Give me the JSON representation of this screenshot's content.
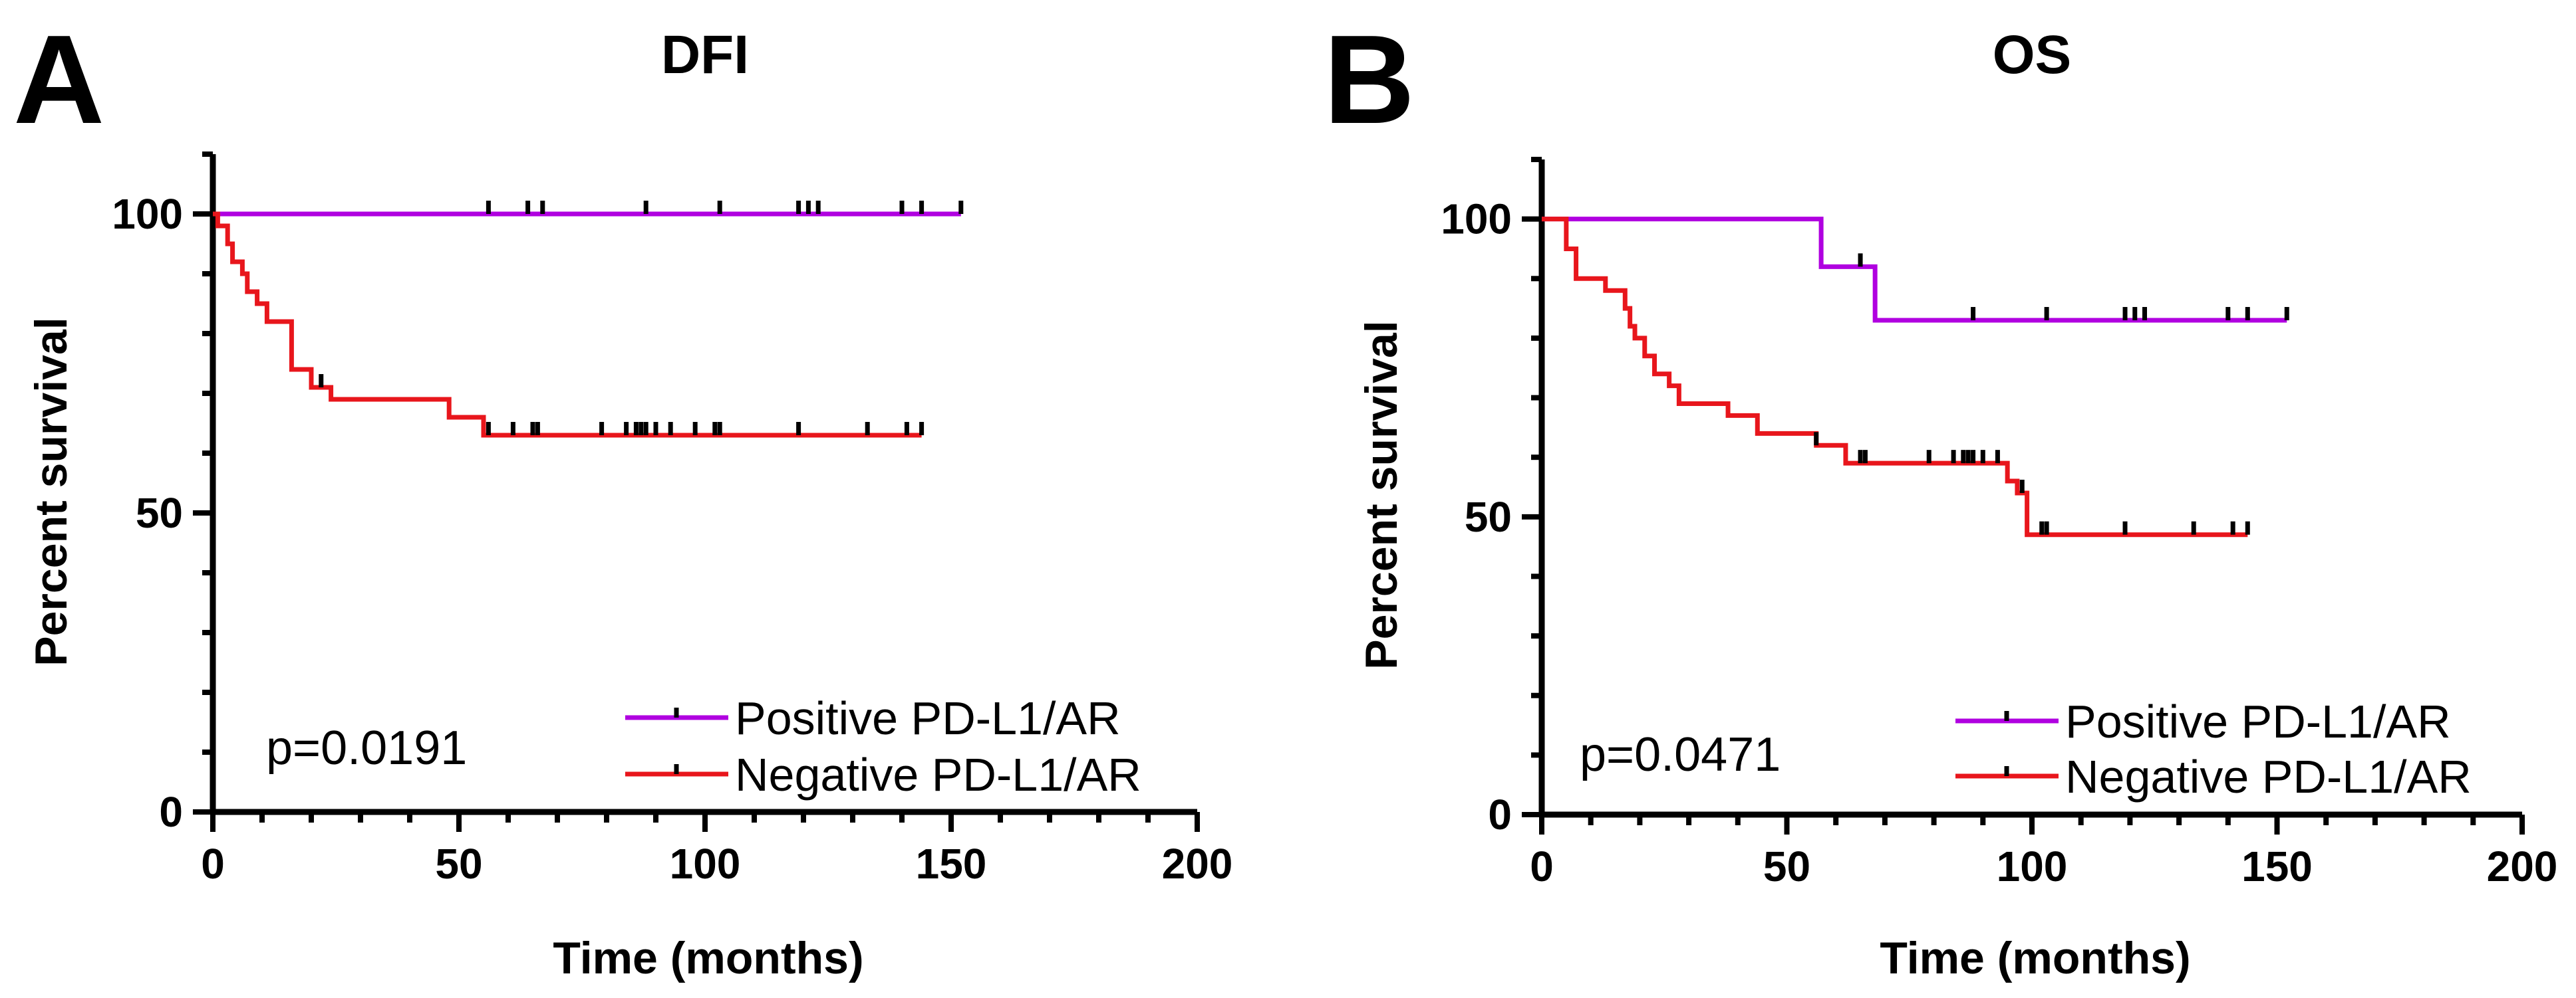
{
  "chart_data": [
    {
      "type": "line",
      "panel_label": "A",
      "title": "DFI",
      "xlabel": "Time (months)",
      "ylabel": "Percent survival",
      "xlim": [
        0,
        200
      ],
      "ylim": [
        0,
        110
      ],
      "x_ticks": [
        0,
        50,
        100,
        150,
        200
      ],
      "x_tick_labels": [
        "0",
        "50",
        "100",
        "150",
        "200"
      ],
      "y_ticks": [
        0,
        50,
        100
      ],
      "y_tick_labels": [
        "0",
        "50",
        "100"
      ],
      "annotation": "p=0.0191",
      "legend_position": "bottom-right",
      "series": [
        {
          "name": "Positive PD-L1/AR",
          "color": "#b000e0",
          "steps": [
            [
              0,
              100
            ],
            [
              152,
              100
            ]
          ],
          "censored": [
            56,
            64,
            67,
            88,
            103,
            119,
            121,
            123,
            140,
            144,
            152
          ]
        },
        {
          "name": "Negative PD-L1/AR",
          "color": "#e8161c",
          "steps": [
            [
              0,
              100
            ],
            [
              1,
              98
            ],
            [
              3,
              95
            ],
            [
              4,
              92
            ],
            [
              6,
              90
            ],
            [
              7,
              87
            ],
            [
              9,
              85
            ],
            [
              11,
              82
            ],
            [
              16,
              74
            ],
            [
              20,
              71
            ],
            [
              24,
              69
            ],
            [
              48,
              66
            ],
            [
              55,
              63
            ],
            [
              144,
              63
            ]
          ],
          "censored": [
            22,
            56,
            61,
            65,
            66,
            79,
            84,
            86,
            87,
            88,
            90,
            93,
            98,
            102,
            103,
            119,
            133,
            141,
            144
          ]
        }
      ]
    },
    {
      "type": "line",
      "panel_label": "B",
      "title": "OS",
      "xlabel": "Time (months)",
      "ylabel": "Percent survival",
      "xlim": [
        0,
        200
      ],
      "ylim": [
        0,
        110
      ],
      "x_ticks": [
        0,
        50,
        100,
        150,
        200
      ],
      "x_tick_labels": [
        "0",
        "50",
        "100",
        "150",
        "200"
      ],
      "y_ticks": [
        0,
        50,
        100
      ],
      "y_tick_labels": [
        "0",
        "50",
        "100"
      ],
      "annotation": "p=0.0471",
      "legend_position": "bottom-right",
      "series": [
        {
          "name": "Positive PD-L1/AR",
          "color": "#b000e0",
          "steps": [
            [
              0,
              100
            ],
            [
              57,
              92
            ],
            [
              68,
              83
            ],
            [
              152,
              83
            ]
          ],
          "censored": [
            65,
            88,
            103,
            119,
            121,
            123,
            140,
            144,
            152
          ]
        },
        {
          "name": "Negative PD-L1/AR",
          "color": "#e8161c",
          "steps": [
            [
              0,
              100
            ],
            [
              5,
              95
            ],
            [
              7,
              90
            ],
            [
              13,
              88
            ],
            [
              17,
              85
            ],
            [
              18,
              82
            ],
            [
              19,
              80
            ],
            [
              21,
              77
            ],
            [
              23,
              74
            ],
            [
              26,
              72
            ],
            [
              28,
              69
            ],
            [
              38,
              67
            ],
            [
              44,
              64
            ],
            [
              56,
              62
            ],
            [
              62,
              59
            ],
            [
              95,
              56
            ],
            [
              97,
              54
            ],
            [
              99,
              47
            ],
            [
              144,
              47
            ]
          ],
          "censored": [
            56,
            65,
            66,
            79,
            84,
            86,
            87,
            88,
            90,
            93,
            98,
            102,
            103,
            119,
            133,
            141,
            144
          ]
        }
      ]
    }
  ]
}
